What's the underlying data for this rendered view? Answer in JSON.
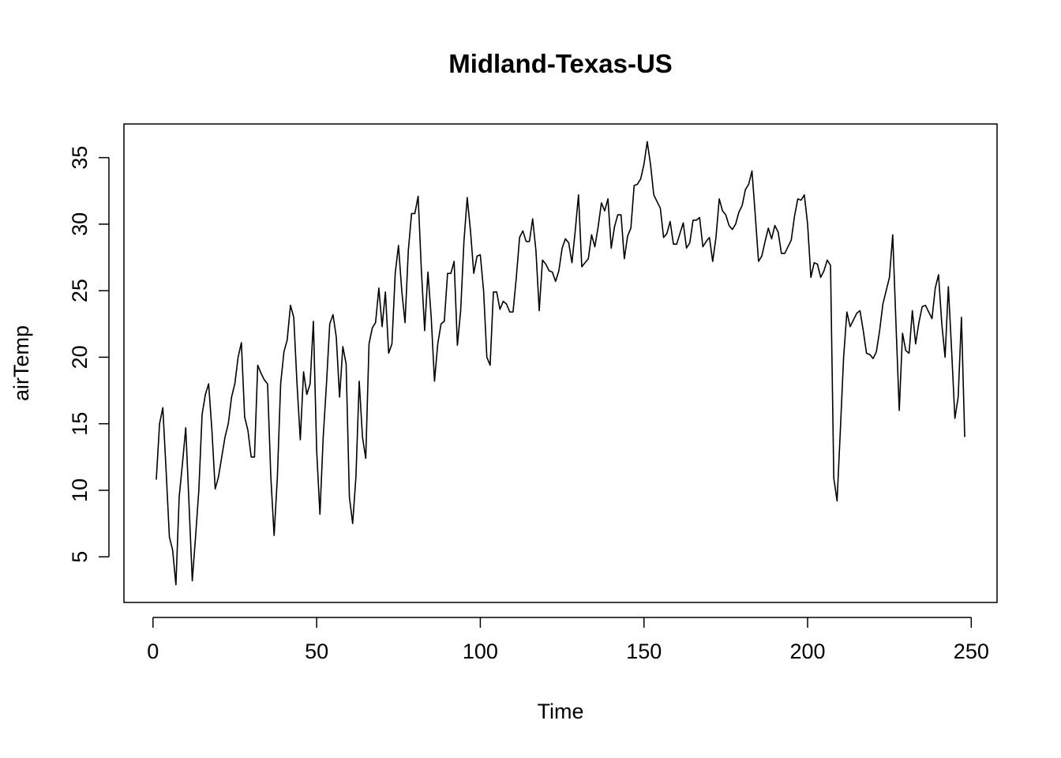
{
  "chart_data": {
    "type": "line",
    "title": "Midland-Texas-US",
    "x_label": "Time",
    "y_label": "airTemp",
    "x": [
      1,
      2,
      3,
      4,
      5,
      6,
      7,
      8,
      9,
      10,
      11,
      12,
      13,
      14,
      15,
      16,
      17,
      18,
      19,
      20,
      21,
      22,
      23,
      24,
      25,
      26,
      27,
      28,
      29,
      30,
      31,
      32,
      33,
      34,
      35,
      36,
      37,
      38,
      39,
      40,
      41,
      42,
      43,
      44,
      45,
      46,
      47,
      48,
      49,
      50,
      51,
      52,
      53,
      54,
      55,
      56,
      57,
      58,
      59,
      60,
      61,
      62,
      63,
      64,
      65,
      66,
      67,
      68,
      69,
      70,
      71,
      72,
      73,
      74,
      75,
      76,
      77,
      78,
      79,
      80,
      81,
      82,
      83,
      84,
      85,
      86,
      87,
      88,
      89,
      90,
      91,
      92,
      93,
      94,
      95,
      96,
      97,
      98,
      99,
      100,
      101,
      102,
      103,
      104,
      105,
      106,
      107,
      108,
      109,
      110,
      111,
      112,
      113,
      114,
      115,
      116,
      117,
      118,
      119,
      120,
      121,
      122,
      123,
      124,
      125,
      126,
      127,
      128,
      129,
      130,
      131,
      132,
      133,
      134,
      135,
      136,
      137,
      138,
      139,
      140,
      141,
      142,
      143,
      144,
      145,
      146,
      147,
      148,
      149,
      150,
      151,
      152,
      153,
      154,
      155,
      156,
      157,
      158,
      159,
      160,
      161,
      162,
      163,
      164,
      165,
      166,
      167,
      168,
      169,
      170,
      171,
      172,
      173,
      174,
      175,
      176,
      177,
      178,
      179,
      180,
      181,
      182,
      183,
      184,
      185,
      186,
      187,
      188,
      189,
      190,
      191,
      192,
      193,
      194,
      195,
      196,
      197,
      198,
      199,
      200,
      201,
      202,
      203,
      204,
      205,
      206,
      207,
      208,
      209,
      210,
      211,
      212,
      213,
      214,
      215,
      216,
      217,
      218,
      219,
      220,
      221,
      222,
      223,
      224,
      225,
      226,
      227,
      228,
      229,
      230,
      231,
      232,
      233,
      234,
      235,
      236,
      237,
      238,
      239,
      240,
      241,
      242,
      243,
      244,
      245,
      246,
      247,
      248
    ],
    "series": [
      {
        "name": "airTemp",
        "color": "#000000",
        "values": [
          10.8,
          15.0,
          16.2,
          11.5,
          6.5,
          5.5,
          2.9,
          9.5,
          12.0,
          14.7,
          9.0,
          3.2,
          6.5,
          10.0,
          15.7,
          17.2,
          18.0,
          14.5,
          10.1,
          11.0,
          12.5,
          14.0,
          15.0,
          17.0,
          18.0,
          20.0,
          21.1,
          15.5,
          14.5,
          12.5,
          12.5,
          19.4,
          18.8,
          18.3,
          18.0,
          11.0,
          6.6,
          11.0,
          18.0,
          20.4,
          21.3,
          23.9,
          23.0,
          18.0,
          13.8,
          18.9,
          17.2,
          18.0,
          22.7,
          13.0,
          8.2,
          14.0,
          18.0,
          22.5,
          23.2,
          21.5,
          17.0,
          20.8,
          19.5,
          9.5,
          7.5,
          11.0,
          18.2,
          14.0,
          12.4,
          21.0,
          22.2,
          22.6,
          25.2,
          22.3,
          24.9,
          20.3,
          21.0,
          26.3,
          28.4,
          25.0,
          22.6,
          28.0,
          30.8,
          30.8,
          32.1,
          26.5,
          22.0,
          26.4,
          23.0,
          18.2,
          21.0,
          22.5,
          22.7,
          26.3,
          26.3,
          27.2,
          20.9,
          23.5,
          28.7,
          32.0,
          29.5,
          26.3,
          27.6,
          27.7,
          25.0,
          20.0,
          19.4,
          24.9,
          24.9,
          23.6,
          24.2,
          24.0,
          23.4,
          23.4,
          26.0,
          29.0,
          29.5,
          28.7,
          28.7,
          30.4,
          28.0,
          23.5,
          27.3,
          27.0,
          26.5,
          26.4,
          25.7,
          26.5,
          28.2,
          28.9,
          28.6,
          27.1,
          29.5,
          32.2,
          26.8,
          27.1,
          27.4,
          29.2,
          28.3,
          29.8,
          31.6,
          31.0,
          31.9,
          28.2,
          29.8,
          30.7,
          30.7,
          27.4,
          29.1,
          29.7,
          32.9,
          33.0,
          33.4,
          34.5,
          36.2,
          34.5,
          32.2,
          31.7,
          31.2,
          29.0,
          29.3,
          30.2,
          28.5,
          28.5,
          29.3,
          30.1,
          28.2,
          28.6,
          30.3,
          30.3,
          30.5,
          28.3,
          28.7,
          29.0,
          27.2,
          29.0,
          31.9,
          31.0,
          30.7,
          29.9,
          29.6,
          30.0,
          30.9,
          31.4,
          32.6,
          33.0,
          34.0,
          30.7,
          27.2,
          27.6,
          28.7,
          29.7,
          28.9,
          29.9,
          29.4,
          27.8,
          27.8,
          28.3,
          28.8,
          30.6,
          31.9,
          31.8,
          32.2,
          30.0,
          26.0,
          27.1,
          27.0,
          26.0,
          26.5,
          27.3,
          26.9,
          10.9,
          9.2,
          14.5,
          20.0,
          23.4,
          22.3,
          22.8,
          23.3,
          23.5,
          22.0,
          20.3,
          20.2,
          19.9,
          20.4,
          22.0,
          24.0,
          25.0,
          26.0,
          29.2,
          22.5,
          16.0,
          21.8,
          20.5,
          20.3,
          23.5,
          21.0,
          22.6,
          23.8,
          23.9,
          23.4,
          22.9,
          25.2,
          26.2,
          22.5,
          20.0,
          25.3,
          20.5,
          15.4,
          17.0,
          23.0,
          14.0
        ]
      }
    ],
    "xlim": [
      -8.88,
      257.88
    ],
    "ylim": [
      1.57,
      37.53
    ],
    "xticks": [
      0,
      50,
      100,
      150,
      200,
      250
    ],
    "yticks": [
      5,
      10,
      15,
      20,
      25,
      30,
      35
    ]
  }
}
